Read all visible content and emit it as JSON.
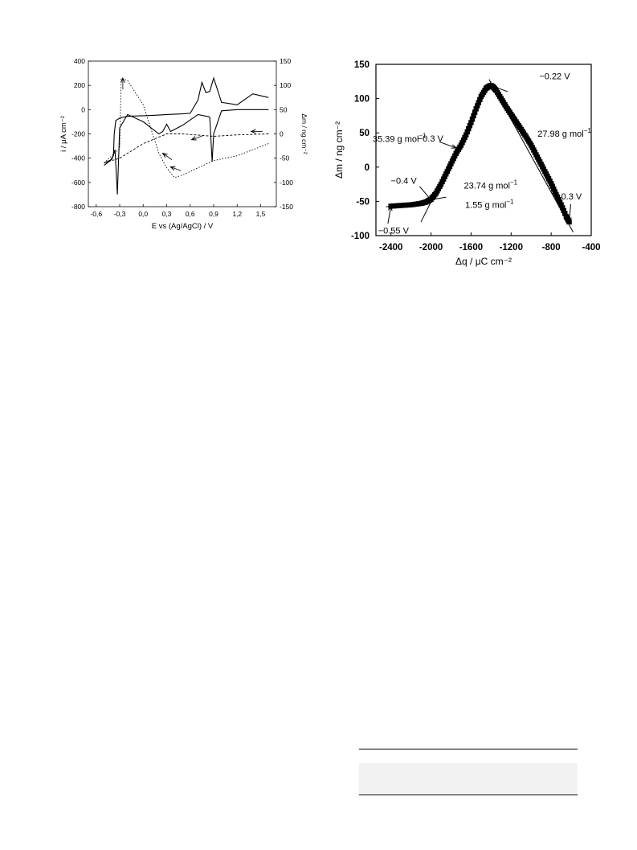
{
  "chart_data": [
    {
      "type": "line",
      "title": "",
      "xlabel": "E vs (Ag/AgCl) / V",
      "ylabel": "i / μA cm⁻²",
      "ylabel_right": "Δm / ng cm⁻²",
      "xlim": [
        -0.7,
        1.7
      ],
      "ylim": [
        -800,
        400
      ],
      "ylim_right": [
        -150,
        150
      ],
      "x_ticks": [
        "-0,6",
        "-0,3",
        "0,0",
        "0,3",
        "0,6",
        "0,9",
        "1,2",
        "1,5"
      ],
      "y_ticks": [
        "400",
        "200",
        "0",
        "-200",
        "-400",
        "-600",
        "-800"
      ],
      "y_ticks_right": [
        "150",
        "100",
        "50",
        "0",
        "-50",
        "-100",
        "-150"
      ],
      "series": [
        {
          "axis": "left",
          "style": "solid",
          "x": [
            -0.5,
            -0.42,
            -0.38,
            -0.37,
            -0.35,
            -0.3,
            -0.2,
            0.0,
            0.1,
            0.2,
            0.3,
            0.5,
            0.6,
            0.7,
            0.75,
            0.8,
            0.85,
            0.9,
            1.0,
            1.2,
            1.4,
            1.6
          ],
          "y": [
            -460,
            -420,
            -380,
            -200,
            -90,
            -70,
            -55,
            -50,
            -48,
            -45,
            -40,
            -35,
            -30,
            80,
            225,
            140,
            150,
            260,
            60,
            40,
            130,
            100
          ]
        },
        {
          "axis": "left",
          "style": "solid",
          "x": [
            1.6,
            1.2,
            1.0,
            0.9,
            0.88,
            0.85,
            0.7,
            0.5,
            0.35,
            0.3,
            0.25,
            0.2,
            0.0,
            -0.2,
            -0.3,
            -0.33,
            -0.36,
            -0.4,
            -0.5
          ],
          "y": [
            0,
            0,
            -10,
            -200,
            -430,
            -60,
            -40,
            -130,
            -180,
            -120,
            -180,
            -200,
            -100,
            -40,
            -150,
            -700,
            -330,
            -410,
            -440
          ]
        },
        {
          "axis": "right",
          "style": "dashed",
          "x": [
            1.6,
            1.2,
            0.9,
            0.5,
            0.3,
            0.0,
            -0.3,
            -0.5
          ],
          "y": [
            0,
            -2,
            -5,
            0,
            0,
            -20,
            -50,
            -60
          ]
        },
        {
          "axis": "right",
          "style": "dotted",
          "x": [
            -0.5,
            -0.3,
            -0.28,
            -0.2,
            0.0,
            0.2,
            0.3,
            0.4,
            0.5,
            0.7,
            0.9,
            1.2,
            1.6
          ],
          "y": [
            -60,
            -30,
            115,
            110,
            60,
            -40,
            -70,
            -90,
            -85,
            -70,
            -55,
            -45,
            -20
          ]
        }
      ],
      "annotations": [
        {
          "label": "arrow",
          "x": 1.38,
          "y": 5,
          "axis": "right"
        },
        {
          "label": "arrow",
          "x": 0.62,
          "y": -12,
          "axis": "right"
        },
        {
          "label": "arrow",
          "x": 0.25,
          "y": -40,
          "axis": "right"
        },
        {
          "label": "arrow",
          "x": 0.35,
          "y": -68,
          "axis": "right"
        },
        {
          "label": "arrow",
          "x": -0.26,
          "y": 115,
          "axis": "right"
        }
      ]
    },
    {
      "type": "scatter",
      "title": "",
      "xlabel": "Δq / μC cm⁻²",
      "ylabel": "Δm / ng cm⁻²",
      "xlim": [
        -2550,
        -400
      ],
      "ylim": [
        -100,
        150
      ],
      "x_ticks": [
        "-2400",
        "-2000",
        "-1600",
        "-1200",
        "-800",
        "-400"
      ],
      "y_ticks": [
        "150",
        "100",
        "50",
        "0",
        "-50",
        "-100"
      ],
      "series": [
        {
          "x": [
            -2400,
            -2300,
            -2200,
            -2100,
            -2050,
            -2000,
            -1950,
            -1900,
            -1850,
            -1800,
            -1750,
            -1700,
            -1650,
            -1600,
            -1550,
            -1500,
            -1450,
            -1420,
            -1400,
            -1380,
            -1350,
            -1300,
            -1250,
            -1200,
            -1150,
            -1100,
            -1050,
            -1000,
            -950,
            -900,
            -850,
            -800,
            -750,
            -700,
            -650,
            -620
          ],
          "y": [
            -57,
            -56,
            -55,
            -53,
            -51,
            -47,
            -38,
            -25,
            -10,
            5,
            20,
            32,
            47,
            65,
            85,
            103,
            115,
            118,
            119,
            117,
            112,
            100,
            88,
            77,
            66,
            55,
            44,
            32,
            18,
            4,
            -10,
            -24,
            -40,
            -55,
            -72,
            -80
          ]
        }
      ],
      "annotations": [
        {
          "label": "−0.22 V",
          "x": -1400,
          "y": 119
        },
        {
          "label": "35.39 g mol",
          "x": -1700,
          "y": 60
        },
        {
          "label": "27.98 g mol",
          "x": -1000,
          "y": 50
        },
        {
          "label": "−0.3 V",
          "x": -1750,
          "y": 28
        },
        {
          "label": "23.74 g mol",
          "x": -1800,
          "y": -10
        },
        {
          "label": "−0.4 V",
          "x": -2000,
          "y": -48
        },
        {
          "label": "1.55 g mol",
          "x": -1900,
          "y": -50
        },
        {
          "label": "0.3 V",
          "x": -620,
          "y": -80
        },
        {
          "label": "−0.55 V",
          "x": -2400,
          "y": -57
        }
      ],
      "superscript": "−1"
    }
  ]
}
